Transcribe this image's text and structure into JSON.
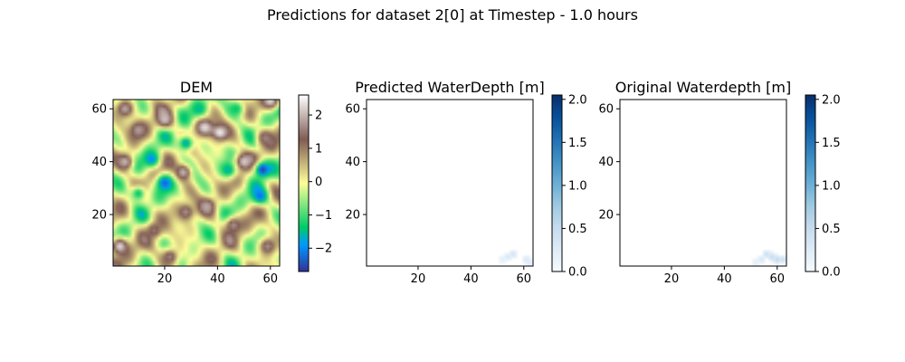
{
  "title": "Predictions for dataset 2[0] at Timestep - 1.0 hours",
  "chart_data": [
    {
      "type": "heatmap",
      "title": "DEM",
      "colormap": "terrain",
      "x_ticks": [
        20,
        40,
        60
      ],
      "y_ticks": [
        20,
        40,
        60
      ],
      "xlim": [
        0.5,
        63.5
      ],
      "ylim": [
        0.5,
        63.5
      ],
      "colorbar": {
        "range": [
          -2.7,
          2.6
        ],
        "ticks": [
          -2,
          -1,
          0,
          1,
          2
        ],
        "tick_labels": [
          "−2",
          "−1",
          "0",
          "1",
          "2"
        ]
      },
      "features": [
        {
          "x": 57,
          "y": 37,
          "value": -2.6
        },
        {
          "x": 20,
          "y": 32,
          "value": -2.3
        },
        {
          "x": 15,
          "y": 41,
          "value": -2.0
        },
        {
          "x": 56,
          "y": 27,
          "value": -2.2
        },
        {
          "x": 28,
          "y": 47,
          "value": -1.8
        },
        {
          "x": 33,
          "y": 60,
          "value": -1.6
        },
        {
          "x": 44,
          "y": 37,
          "value": -1.7
        },
        {
          "x": 10,
          "y": 28,
          "value": -1.4
        },
        {
          "x": 47,
          "y": 60,
          "value": -1.4
        },
        {
          "x": 41,
          "y": 51,
          "value": 2.4
        },
        {
          "x": 35,
          "y": 53,
          "value": 2.3
        },
        {
          "x": 3,
          "y": 8,
          "value": 2.3
        },
        {
          "x": 20,
          "y": 56,
          "value": 2.1
        },
        {
          "x": 50,
          "y": 40,
          "value": 2.2
        },
        {
          "x": 27,
          "y": 36,
          "value": 2.0
        },
        {
          "x": 5,
          "y": 40,
          "value": 2.0
        },
        {
          "x": 60,
          "y": 63,
          "value": 2.3
        },
        {
          "x": 36,
          "y": 23,
          "value": 1.9
        },
        {
          "x": 28,
          "y": 21,
          "value": 1.7
        },
        {
          "x": 10,
          "y": 52,
          "value": 1.8
        },
        {
          "x": 58,
          "y": 49,
          "value": 1.6
        },
        {
          "x": 46,
          "y": 16,
          "value": 1.7
        },
        {
          "x": 5,
          "y": 60,
          "value": 1.9
        },
        {
          "x": 59,
          "y": 8,
          "value": 1.7
        },
        {
          "x": 16,
          "y": 14,
          "value": 1.5
        },
        {
          "x": 22,
          "y": 4,
          "value": 1.6
        }
      ]
    },
    {
      "type": "heatmap",
      "title": "Predicted WaterDepth [m]",
      "colormap": "Blues",
      "x_ticks": [
        20,
        40,
        60
      ],
      "y_ticks": [
        20,
        40,
        60
      ],
      "xlim": [
        0.5,
        63.5
      ],
      "ylim": [
        0.5,
        63.5
      ],
      "colorbar": {
        "range": [
          0.0,
          2.05
        ],
        "ticks": [
          0.0,
          0.5,
          1.0,
          1.5,
          2.0
        ],
        "tick_labels": [
          "0.0",
          "0.5",
          "1.0",
          "1.5",
          "2.0"
        ]
      },
      "features": [
        {
          "x": 56,
          "y": 5,
          "value": 0.35
        },
        {
          "x": 54,
          "y": 4,
          "value": 0.3
        },
        {
          "x": 52,
          "y": 3,
          "value": 0.2
        },
        {
          "x": 61,
          "y": 3,
          "value": 0.3
        },
        {
          "x": 62,
          "y": 2,
          "value": 0.25
        }
      ]
    },
    {
      "type": "heatmap",
      "title": "Original Waterdepth [m]",
      "colormap": "Blues",
      "x_ticks": [
        20,
        40,
        60
      ],
      "y_ticks": [
        20,
        40,
        60
      ],
      "xlim": [
        0.5,
        63.5
      ],
      "ylim": [
        0.5,
        63.5
      ],
      "colorbar": {
        "range": [
          0.0,
          2.05
        ],
        "ticks": [
          0.0,
          0.5,
          1.0,
          1.5,
          2.0
        ],
        "tick_labels": [
          "0.0",
          "0.5",
          "1.0",
          "1.5",
          "2.0"
        ]
      },
      "features": [
        {
          "x": 56,
          "y": 5,
          "value": 0.45
        },
        {
          "x": 58,
          "y": 4,
          "value": 0.5
        },
        {
          "x": 60,
          "y": 3,
          "value": 0.55
        },
        {
          "x": 62,
          "y": 3,
          "value": 0.45
        },
        {
          "x": 54,
          "y": 3,
          "value": 0.3
        },
        {
          "x": 52,
          "y": 2,
          "value": 0.2
        }
      ]
    }
  ]
}
